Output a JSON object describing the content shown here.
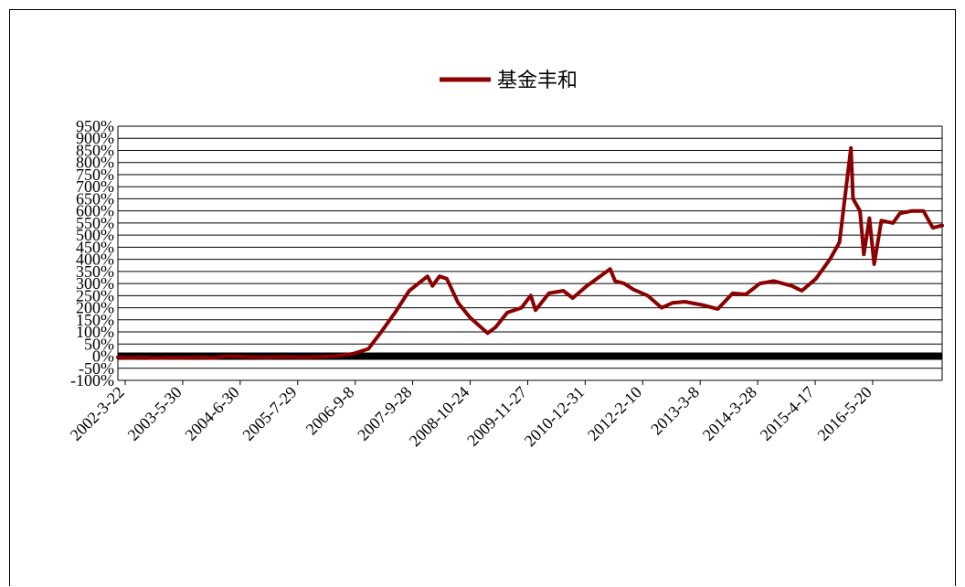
{
  "chart_data": {
    "type": "line",
    "title": "",
    "xlabel": "",
    "ylabel": "",
    "series": [
      {
        "name": "基金丰和",
        "color": "#8b0000",
        "points": [
          [
            "2002-03-22",
            -5
          ],
          [
            "2002-06-01",
            -7
          ],
          [
            "2002-09-01",
            -5
          ],
          [
            "2002-12-01",
            -8
          ],
          [
            "2003-03-01",
            -6
          ],
          [
            "2003-05-30",
            -6
          ],
          [
            "2003-09-01",
            -5
          ],
          [
            "2003-12-01",
            -7
          ],
          [
            "2004-03-01",
            0
          ],
          [
            "2004-06-30",
            -3
          ],
          [
            "2004-09-01",
            -4
          ],
          [
            "2004-12-01",
            -5
          ],
          [
            "2005-03-01",
            -3
          ],
          [
            "2005-07-29",
            -5
          ],
          [
            "2005-10-01",
            -3
          ],
          [
            "2005-12-01",
            -2
          ],
          [
            "2006-03-01",
            2
          ],
          [
            "2006-06-01",
            10
          ],
          [
            "2006-09-08",
            30
          ],
          [
            "2006-12-01",
            100
          ],
          [
            "2007-03-01",
            180
          ],
          [
            "2007-06-01",
            270
          ],
          [
            "2007-09-28",
            330
          ],
          [
            "2007-10-31",
            290
          ],
          [
            "2007-12-15",
            330
          ],
          [
            "2008-02-01",
            320
          ],
          [
            "2008-04-15",
            220
          ],
          [
            "2008-07-01",
            160
          ],
          [
            "2008-10-24",
            95
          ],
          [
            "2008-12-15",
            120
          ],
          [
            "2009-03-01",
            180
          ],
          [
            "2009-06-01",
            200
          ],
          [
            "2009-08-01",
            250
          ],
          [
            "2009-09-01",
            190
          ],
          [
            "2009-11-27",
            260
          ],
          [
            "2010-03-01",
            270
          ],
          [
            "2010-05-01",
            240
          ],
          [
            "2010-08-01",
            290
          ],
          [
            "2010-12-31",
            360
          ],
          [
            "2011-02-01",
            310
          ],
          [
            "2011-04-01",
            300
          ],
          [
            "2011-06-01",
            275
          ],
          [
            "2011-09-01",
            250
          ],
          [
            "2011-12-01",
            200
          ],
          [
            "2012-02-10",
            220
          ],
          [
            "2012-05-01",
            225
          ],
          [
            "2012-09-01",
            210
          ],
          [
            "2012-12-01",
            195
          ],
          [
            "2013-03-08",
            260
          ],
          [
            "2013-06-01",
            255
          ],
          [
            "2013-09-01",
            300
          ],
          [
            "2013-12-01",
            310
          ],
          [
            "2014-03-28",
            290
          ],
          [
            "2014-06-01",
            270
          ],
          [
            "2014-09-01",
            320
          ],
          [
            "2014-12-01",
            400
          ],
          [
            "2015-02-01",
            470
          ],
          [
            "2015-04-17",
            860
          ],
          [
            "2015-05-01",
            650
          ],
          [
            "2015-06-15",
            600
          ],
          [
            "2015-07-10",
            420
          ],
          [
            "2015-08-15",
            570
          ],
          [
            "2015-09-15",
            380
          ],
          [
            "2015-11-01",
            560
          ],
          [
            "2016-01-15",
            550
          ],
          [
            "2016-03-01",
            590
          ],
          [
            "2016-05-20",
            600
          ],
          [
            "2016-08-01",
            600
          ],
          [
            "2016-10-01",
            530
          ],
          [
            "2016-12-01",
            540
          ]
        ]
      }
    ],
    "yticks": [
      "950%",
      "900%",
      "850%",
      "800%",
      "750%",
      "700%",
      "650%",
      "600%",
      "550%",
      "500%",
      "450%",
      "400%",
      "350%",
      "300%",
      "250%",
      "200%",
      "150%",
      "100%",
      "50%",
      "0%",
      "-50%",
      "-100%"
    ],
    "ylim": [
      -100,
      950
    ],
    "xticks": [
      "2002-3-22",
      "2003-5-30",
      "2004-6-30",
      "2005-7-29",
      "2006-9-8",
      "2007-9-28",
      "2008-10-24",
      "2009-11-27",
      "2010-12-31",
      "2012-2-10",
      "2013-3-8",
      "2014-3-28",
      "2015-4-17",
      "2016-5-20"
    ],
    "xlim": [
      "2002-03-22",
      "2016-12-01"
    ],
    "grid": true,
    "legend_position": "top-center"
  }
}
